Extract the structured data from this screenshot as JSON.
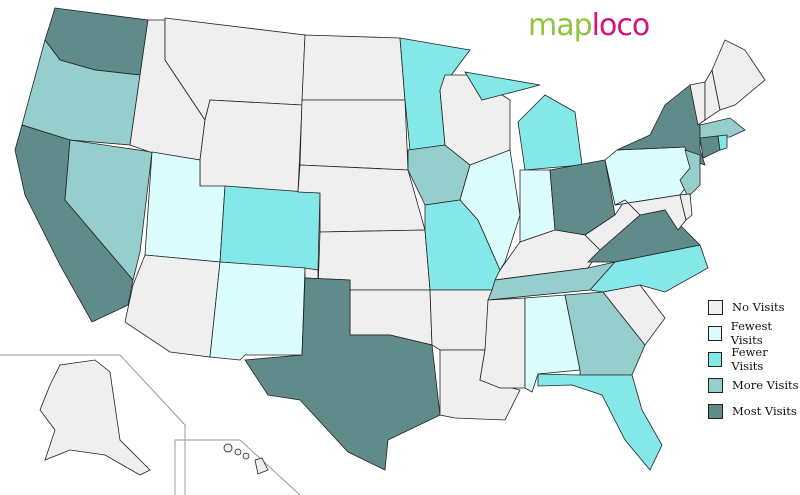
{
  "logo": {
    "part1": "map",
    "part2": "loco"
  },
  "colors": {
    "none": "#efefef",
    "fewest": "#dcfdfd",
    "fewer": "#84e8e8",
    "more": "#96cdcd",
    "most": "#5f8b8a",
    "logo_green": "#8cc63f",
    "logo_pink": "#d6127a"
  },
  "legend": [
    {
      "key": "none",
      "label": "No Visits"
    },
    {
      "key": "fewest",
      "label": "Fewest Visits"
    },
    {
      "key": "fewer",
      "label": "Fewer Visits"
    },
    {
      "key": "more",
      "label": "More Visits"
    },
    {
      "key": "most",
      "label": "Most Visits"
    }
  ],
  "states": {
    "WA": "most",
    "OR": "more",
    "CA": "most",
    "NV": "more",
    "ID": "none",
    "MT": "none",
    "WY": "none",
    "UT": "fewest",
    "AZ": "none",
    "CO": "fewer",
    "NM": "fewest",
    "ND": "none",
    "SD": "none",
    "NE": "none",
    "KS": "none",
    "OK": "none",
    "TX": "most",
    "MN": "fewer",
    "IA": "more",
    "MO": "fewer",
    "AR": "none",
    "LA": "none",
    "WI": "none",
    "IL": "fewest",
    "MI": "fewer",
    "IN": "fewest",
    "OH": "most",
    "KY": "none",
    "TN": "more",
    "MS": "none",
    "AL": "fewest",
    "GA": "more",
    "FL": "fewer",
    "SC": "none",
    "NC": "fewer",
    "VA": "most",
    "WV": "none",
    "PA": "fewest",
    "NY": "most",
    "NJ": "more",
    "MD": "none",
    "DE": "none",
    "VT": "none",
    "NH": "none",
    "ME": "none",
    "MA": "more",
    "CT": "most",
    "RI": "fewer",
    "AK": "none",
    "HI": "none"
  }
}
